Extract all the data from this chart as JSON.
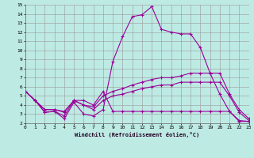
{
  "title": "",
  "xlabel": "Windchill (Refroidissement éolien,°C)",
  "bg_color": "#beeae4",
  "grid_color": "#999999",
  "line_color": "#990099",
  "xlim": [
    0,
    23
  ],
  "ylim": [
    2,
    15
  ],
  "xticks": [
    0,
    1,
    2,
    3,
    4,
    5,
    6,
    7,
    8,
    9,
    10,
    11,
    12,
    13,
    14,
    15,
    16,
    17,
    18,
    19,
    20,
    21,
    22,
    23
  ],
  "yticks": [
    2,
    3,
    4,
    5,
    6,
    7,
    8,
    9,
    10,
    11,
    12,
    13,
    14,
    15
  ],
  "series": [
    {
      "x": [
        0,
        1,
        2,
        3,
        4,
        5,
        6,
        7,
        8,
        9,
        10,
        11,
        12,
        13,
        14,
        15,
        16,
        17,
        18,
        19,
        20,
        21,
        22,
        23
      ],
      "y": [
        5.5,
        4.5,
        3.2,
        3.3,
        2.5,
        4.3,
        3.0,
        2.8,
        3.5,
        8.8,
        11.5,
        13.7,
        13.9,
        14.8,
        12.3,
        12.0,
        11.8,
        11.8,
        10.3,
        7.5,
        5.2,
        3.3,
        2.2,
        2.2
      ]
    },
    {
      "x": [
        0,
        1,
        2,
        3,
        4,
        5,
        6,
        7,
        8,
        9,
        10,
        11,
        12,
        13,
        14,
        15,
        16,
        17,
        18,
        19,
        20,
        21,
        22,
        23
      ],
      "y": [
        5.5,
        4.5,
        3.5,
        3.5,
        3.3,
        4.5,
        4.0,
        3.8,
        5.0,
        5.5,
        5.8,
        6.2,
        6.5,
        6.8,
        7.0,
        7.0,
        7.2,
        7.5,
        7.5,
        7.5,
        7.5,
        5.2,
        3.5,
        2.5
      ]
    },
    {
      "x": [
        0,
        1,
        2,
        3,
        4,
        5,
        6,
        7,
        8,
        9,
        10,
        11,
        12,
        13,
        14,
        15,
        16,
        17,
        18,
        19,
        20,
        21,
        22,
        23
      ],
      "y": [
        5.5,
        4.5,
        3.5,
        3.5,
        3.2,
        4.5,
        4.0,
        3.5,
        4.5,
        5.0,
        5.2,
        5.5,
        5.8,
        6.0,
        6.2,
        6.2,
        6.5,
        6.5,
        6.5,
        6.5,
        6.5,
        5.0,
        3.2,
        2.3
      ]
    },
    {
      "x": [
        0,
        1,
        2,
        3,
        4,
        5,
        6,
        7,
        8,
        9,
        10,
        11,
        12,
        13,
        14,
        15,
        16,
        17,
        18,
        19,
        20,
        21,
        22,
        23
      ],
      "y": [
        5.5,
        4.5,
        3.2,
        3.3,
        2.8,
        4.5,
        4.5,
        4.0,
        5.5,
        3.3,
        3.3,
        3.3,
        3.3,
        3.3,
        3.3,
        3.3,
        3.3,
        3.3,
        3.3,
        3.3,
        3.3,
        3.3,
        2.3,
        2.2
      ]
    }
  ]
}
